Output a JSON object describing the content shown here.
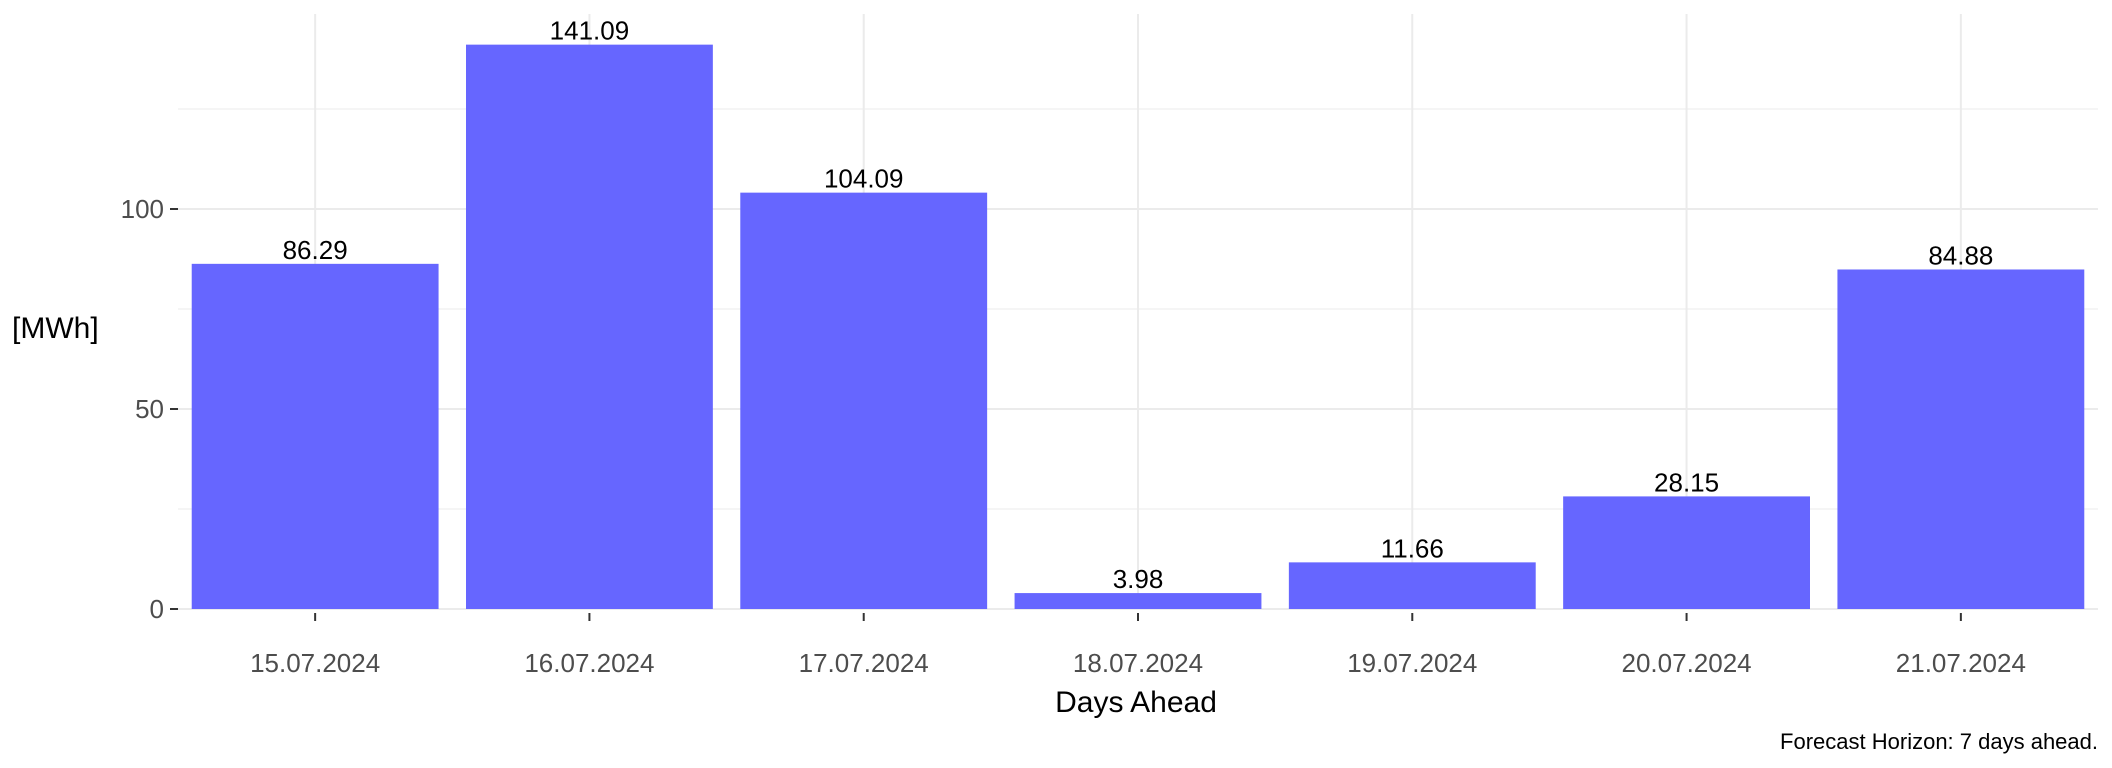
{
  "chart_data": {
    "type": "bar",
    "title": "",
    "xlabel": "Days Ahead",
    "ylabel": "[MWh]",
    "caption": "Forecast Horizon: 7 days ahead.",
    "categories": [
      "15.07.2024",
      "16.07.2024",
      "17.07.2024",
      "18.07.2024",
      "19.07.2024",
      "20.07.2024",
      "21.07.2024"
    ],
    "values": [
      86.29,
      141.09,
      104.09,
      3.98,
      11.66,
      28.15,
      84.88
    ],
    "value_labels": [
      "86.29",
      "141.09",
      "104.09",
      "3.98",
      "11.66",
      "28.15",
      "84.88"
    ],
    "ylim": [
      0,
      150
    ],
    "yticks": [
      0,
      50,
      100
    ],
    "ytick_labels": [
      "0",
      "50",
      "100"
    ],
    "grid": true,
    "legend": "none",
    "bar_color": "#6666ff",
    "grid_color": "#ebebeb"
  }
}
